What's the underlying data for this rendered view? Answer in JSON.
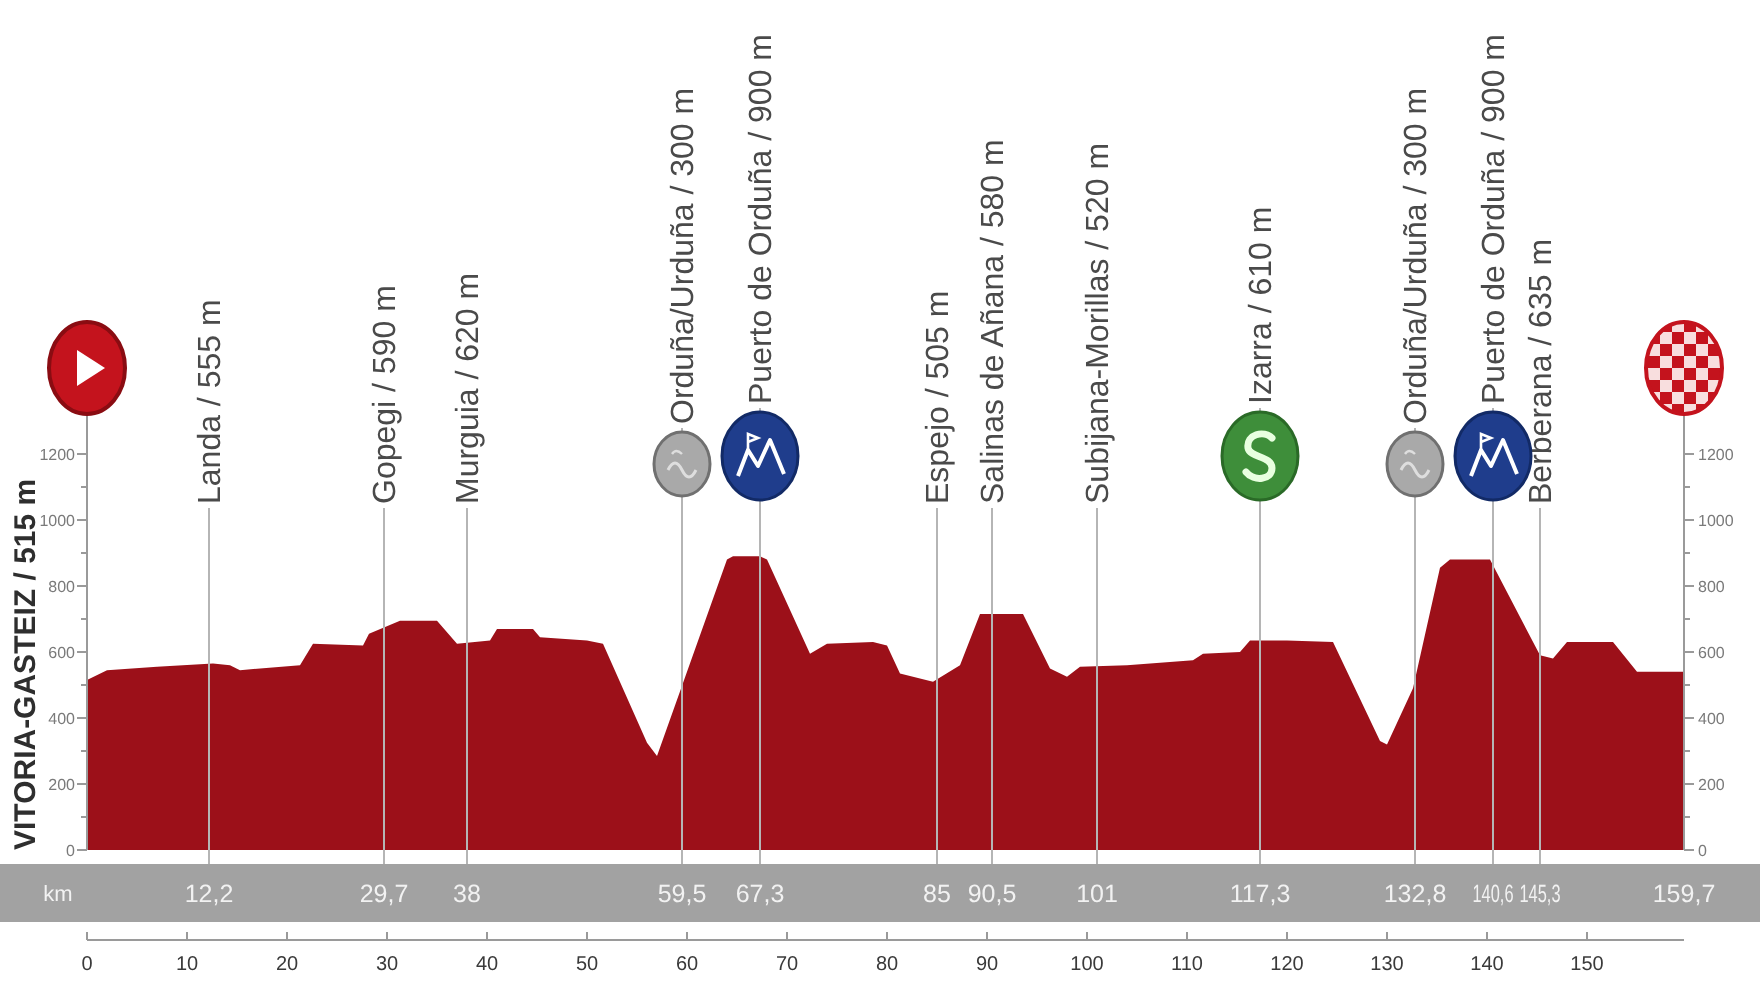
{
  "chart_data": {
    "type": "area",
    "x": [
      0,
      2,
      7,
      12.6,
      14.3,
      15.3,
      21.3,
      22.6,
      27.6,
      28.2,
      31.3,
      35,
      37,
      40.3,
      41,
      44.6,
      45.3,
      50,
      51.6,
      56,
      57,
      64,
      64.6,
      67.3,
      68,
      72.3,
      74,
      78.6,
      80,
      81.3,
      84.6,
      87.3,
      89.3,
      93.6,
      96.3,
      98,
      99.3,
      104,
      110.6,
      111.6,
      115.3,
      116.3,
      120,
      124.6,
      129.3,
      130,
      132.6,
      135.3,
      136.3,
      140.3,
      145.3,
      146.6,
      148,
      152.6,
      155,
      159.7
    ],
    "values": [
      515,
      545,
      555,
      565,
      560,
      545,
      560,
      625,
      620,
      655,
      695,
      695,
      625,
      635,
      670,
      670,
      645,
      635,
      625,
      325,
      285,
      880,
      890,
      890,
      880,
      595,
      625,
      630,
      620,
      535,
      510,
      560,
      715,
      715,
      550,
      525,
      555,
      560,
      575,
      595,
      600,
      635,
      635,
      630,
      330,
      320,
      490,
      855,
      880,
      880,
      590,
      580,
      630,
      630,
      540,
      540
    ],
    "color": "#9c1019",
    "xlim": [
      0,
      159.7
    ],
    "xticks": [
      0,
      10,
      20,
      30,
      40,
      50,
      60,
      70,
      80,
      90,
      100,
      110,
      120,
      130,
      140,
      150
    ],
    "x2label": "km",
    "x2lim": [
      0,
      159.7
    ],
    "x2ticks": [
      {
        "value": 12.2,
        "label": "12,2"
      },
      {
        "value": 29.7,
        "label": "29,7"
      },
      38,
      {
        "value": 59.5,
        "label": "59,5"
      },
      {
        "value": 67.3,
        "label": "67,3"
      },
      85,
      {
        "value": 90.5,
        "label": "90,5"
      },
      101,
      {
        "value": 117.3,
        "label": "117,3"
      },
      {
        "value": 132.8,
        "label": "132,8"
      },
      {
        "value": 140.6,
        "label": "140,6"
      },
      {
        "value": 145.3,
        "label": "145,3"
      },
      {
        "value": 159.7,
        "label": "159,7"
      }
    ],
    "ylim": [
      0,
      1200
    ],
    "yticks": [
      0,
      {
        "value": 100,
        "label": null
      },
      200,
      {
        "value": 300,
        "label": null
      },
      400,
      {
        "value": 500,
        "label": null
      },
      600,
      {
        "value": 700,
        "label": null
      },
      800,
      {
        "value": 900,
        "label": null
      },
      1000,
      {
        "value": 1100,
        "label": null
      },
      1200
    ],
    "y2lim": [
      0,
      1200
    ],
    "y2ticks": [
      0,
      {
        "value": 100,
        "label": null
      },
      200,
      {
        "value": 300,
        "label": null
      },
      400,
      {
        "value": 500,
        "label": null
      },
      600,
      {
        "value": 700,
        "label": null
      },
      800,
      {
        "value": 900,
        "label": null
      },
      1000,
      {
        "value": 1100,
        "label": null
      },
      1200
    ],
    "ref_lines": [
      {
        "axis": "x",
        "value": 12.2,
        "label": "Landa / 555 m",
        "color": "#b5b5b5"
      },
      {
        "axis": "x",
        "value": 29.7,
        "label": "Gopegi / 590 m",
        "color": "#b5b5b5"
      },
      {
        "axis": "x",
        "value": 38,
        "label": "Murguia / 620 m",
        "color": "#b5b5b5"
      },
      {
        "axis": "x",
        "value": 59.5,
        "label": "Orduña/Urduña / 300 m",
        "color": "#b5b5b5"
      },
      {
        "axis": "x",
        "value": 67.3,
        "label": "Puerto de Orduña / 900 m",
        "color": "#b5b5b5"
      },
      {
        "axis": "x",
        "value": 85,
        "label": "Espejo / 505 m",
        "color": "#b5b5b5"
      },
      {
        "axis": "x",
        "value": 90.5,
        "label": "Salinas de Añana / 580 m",
        "color": "#b5b5b5"
      },
      {
        "axis": "x",
        "value": 101,
        "label": "Subijana-Morillas / 520 m",
        "color": "#b5b5b5"
      },
      {
        "axis": "x",
        "value": 117.3,
        "label": "Izarra / 610 m",
        "color": "#b5b5b5"
      },
      {
        "axis": "x",
        "value": 132.8,
        "label": "Orduña/Urduña / 300 m",
        "color": "#b5b5b5"
      },
      {
        "axis": "x",
        "value": 140.6,
        "label": "Puerto de Orduña / 900 m",
        "color": "#b5b5b5"
      },
      {
        "axis": "x",
        "value": 145.3,
        "label": "Berberana / 635 m",
        "color": "#b5b5b5"
      }
    ],
    "annotations": [
      "VITORIA-GASTEIZ / 515 m"
    ]
  }
}
